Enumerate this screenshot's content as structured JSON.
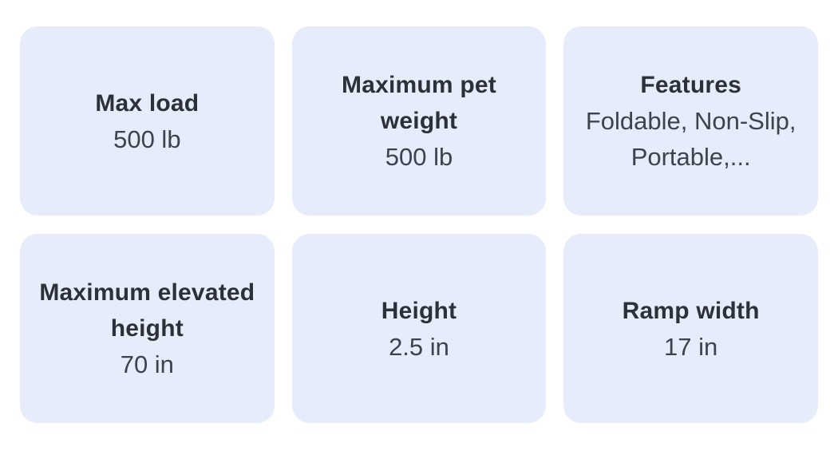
{
  "colors": {
    "page-bg": "#ffffff",
    "card-bg": "#e6ecfa",
    "title-color": "#2c3038",
    "value-color": "#3d434d"
  },
  "spec_cards": {
    "cards": [
      {
        "title": "Max load",
        "value": "500 lb"
      },
      {
        "title": "Maximum pet\nweight",
        "value": "500 lb"
      },
      {
        "title": "Features",
        "value": "Foldable, Non-Slip,\nPortable,..."
      },
      {
        "title": "Maximum elevated\nheight",
        "value": "70 in"
      },
      {
        "title": "Height",
        "value": "2.5 in"
      },
      {
        "title": "Ramp width",
        "value": "17 in"
      }
    ]
  }
}
